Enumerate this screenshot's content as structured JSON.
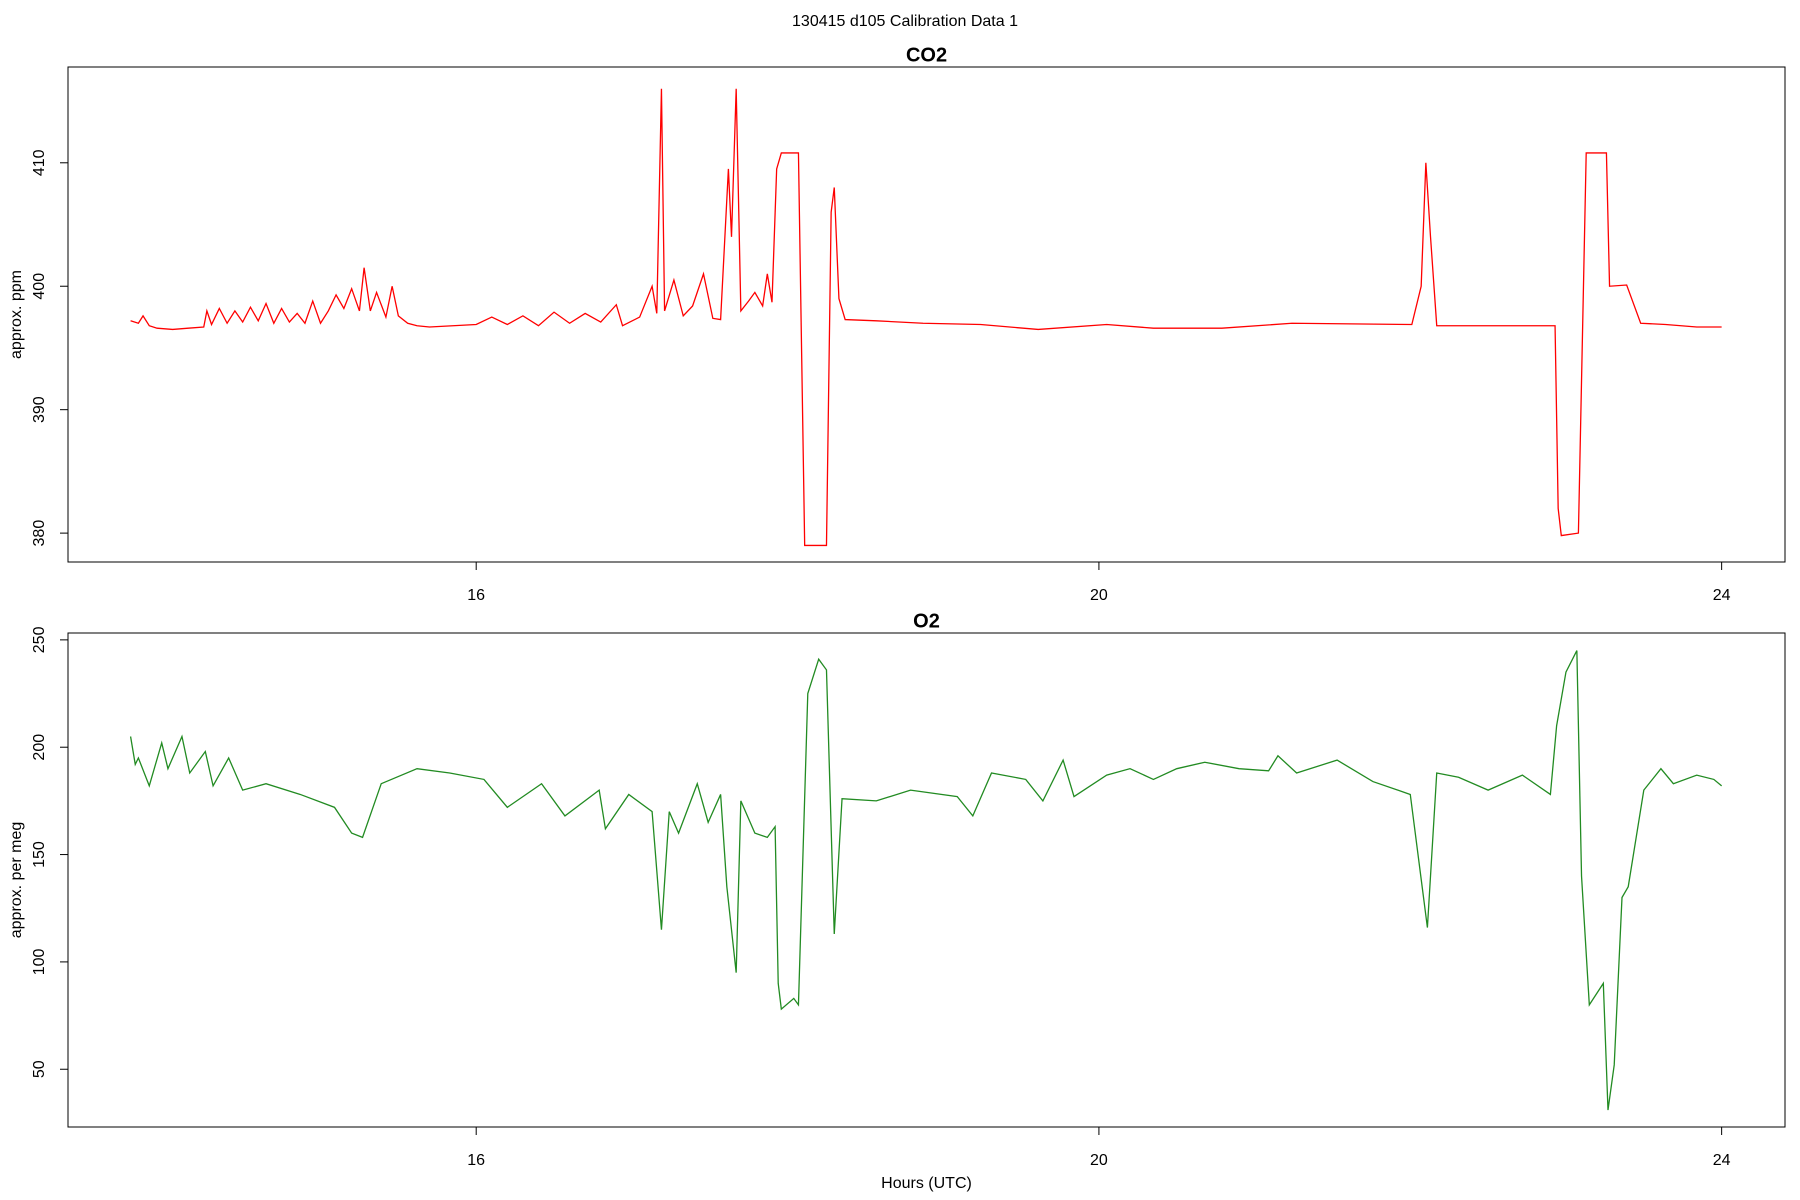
{
  "title": "130415   d105   Calibration Data 1",
  "chart_data": [
    {
      "type": "line",
      "title": "CO2",
      "y_label": "approx. ppm",
      "color": "#ff0000",
      "xlim": [
        13.378,
        24.407
      ],
      "xticks": [
        16,
        20,
        24
      ],
      "ylim": [
        377.66,
        417.76
      ],
      "yticks": [
        380,
        390,
        400,
        410
      ],
      "x": [
        13.78,
        13.83,
        13.86,
        13.9,
        13.95,
        14.05,
        14.15,
        14.25,
        14.27,
        14.3,
        14.35,
        14.4,
        14.45,
        14.5,
        14.55,
        14.6,
        14.65,
        14.7,
        14.75,
        14.8,
        14.85,
        14.9,
        14.95,
        15.0,
        15.05,
        15.1,
        15.15,
        15.2,
        15.25,
        15.28,
        15.32,
        15.36,
        15.42,
        15.46,
        15.5,
        15.56,
        15.62,
        15.7,
        15.85,
        16.0,
        16.1,
        16.2,
        16.3,
        16.4,
        16.5,
        16.6,
        16.7,
        16.8,
        16.9,
        16.94,
        17.05,
        17.13,
        17.16,
        17.19,
        17.21,
        17.27,
        17.33,
        17.39,
        17.46,
        17.52,
        17.57,
        17.62,
        17.64,
        17.67,
        17.7,
        17.75,
        17.79,
        17.84,
        17.87,
        17.9,
        17.93,
        17.96,
        18.07,
        18.11,
        18.25,
        18.28,
        18.3,
        18.33,
        18.37,
        18.57,
        18.87,
        19.24,
        19.61,
        20.05,
        20.35,
        20.79,
        21.24,
        22.01,
        22.07,
        22.1,
        22.13,
        22.17,
        22.93,
        22.95,
        22.97,
        23.08,
        23.13,
        23.26,
        23.28,
        23.39,
        23.48,
        23.64,
        23.84,
        24.0
      ],
      "values": [
        397.2,
        397.0,
        397.6,
        396.8,
        396.6,
        396.5,
        396.6,
        396.7,
        398.0,
        396.9,
        398.2,
        397.0,
        398.0,
        397.1,
        398.3,
        397.2,
        398.6,
        397.0,
        398.2,
        397.1,
        397.8,
        397.0,
        398.8,
        397.0,
        398.0,
        399.3,
        398.2,
        399.8,
        398.0,
        401.5,
        398.0,
        399.5,
        397.5,
        400.0,
        397.6,
        397.0,
        396.8,
        396.7,
        396.8,
        396.9,
        397.5,
        396.9,
        397.6,
        396.8,
        397.9,
        397.0,
        397.8,
        397.1,
        398.5,
        396.8,
        397.5,
        400.0,
        397.8,
        416.0,
        398.0,
        400.5,
        397.6,
        398.4,
        401.0,
        397.4,
        397.3,
        409.5,
        404.0,
        416.0,
        398.0,
        398.8,
        399.5,
        398.4,
        401.0,
        398.7,
        409.5,
        410.8,
        410.8,
        379.0,
        379.0,
        406.0,
        408.0,
        399.0,
        397.3,
        397.2,
        397.0,
        396.9,
        396.5,
        396.9,
        396.6,
        396.6,
        397.0,
        396.9,
        400.0,
        410.0,
        404.0,
        396.8,
        396.8,
        382.0,
        379.8,
        380.0,
        410.8,
        410.8,
        400.0,
        400.1,
        397.0,
        396.9,
        396.7,
        396.7
      ]
    },
    {
      "type": "line",
      "title": "O2",
      "y_label": "approx. per meg",
      "x_label": "Hours (UTC)",
      "color": "#228b22",
      "xlim": [
        13.378,
        24.407
      ],
      "xticks": [
        16,
        20,
        24
      ],
      "ylim": [
        23.1,
        253.2
      ],
      "yticks": [
        50,
        100,
        150,
        200,
        250
      ],
      "x": [
        13.78,
        13.81,
        13.83,
        13.9,
        13.98,
        14.02,
        14.11,
        14.16,
        14.26,
        14.31,
        14.41,
        14.5,
        14.65,
        14.87,
        15.09,
        15.2,
        15.27,
        15.39,
        15.62,
        15.83,
        16.05,
        16.2,
        16.42,
        16.57,
        16.79,
        16.83,
        16.98,
        17.13,
        17.19,
        17.24,
        17.3,
        17.42,
        17.49,
        17.57,
        17.61,
        17.67,
        17.7,
        17.79,
        17.87,
        17.92,
        17.94,
        17.96,
        18.04,
        18.07,
        18.13,
        18.2,
        18.25,
        18.3,
        18.35,
        18.57,
        18.79,
        19.09,
        19.19,
        19.31,
        19.53,
        19.64,
        19.77,
        19.84,
        20.05,
        20.2,
        20.35,
        20.5,
        20.68,
        20.9,
        21.09,
        21.15,
        21.27,
        21.53,
        21.76,
        22.0,
        22.11,
        22.17,
        22.31,
        22.5,
        22.72,
        22.9,
        22.94,
        23.0,
        23.07,
        23.1,
        23.15,
        23.24,
        23.27,
        23.31,
        23.36,
        23.4,
        23.5,
        23.61,
        23.69,
        23.84,
        23.95,
        24.0
      ],
      "values": [
        205,
        192,
        195,
        182,
        202,
        190,
        205,
        188,
        198,
        182,
        195,
        180,
        183,
        178,
        172,
        160,
        158,
        183,
        190,
        188,
        185,
        172,
        183,
        168,
        180,
        162,
        178,
        170,
        115,
        170,
        160,
        183,
        165,
        178,
        135,
        95,
        175,
        160,
        158,
        163,
        90,
        78,
        83,
        80,
        225,
        241,
        236,
        113,
        176,
        175,
        180,
        177,
        168,
        188,
        185,
        175,
        194,
        177,
        187,
        190,
        185,
        190,
        193,
        190,
        189,
        196,
        188,
        194,
        184,
        178,
        116,
        188,
        186,
        180,
        187,
        178,
        210,
        235,
        245,
        140,
        80,
        90,
        31,
        52,
        130,
        135,
        180,
        190,
        183,
        187,
        185,
        182
      ]
    }
  ]
}
